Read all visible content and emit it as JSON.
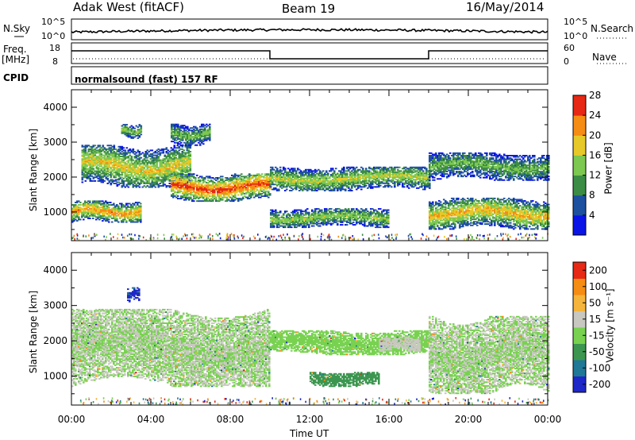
{
  "header": {
    "station": "Adak West (fitACF)",
    "beam": "Beam 19",
    "date": "16/May/2014"
  },
  "top_panels": {
    "nsky_label": "N.Sky",
    "nsky_ticks": [
      "10^5",
      "10^0"
    ],
    "nsearch_label": "N.Search",
    "nsearch_ticks": [
      "10^5",
      "10^0"
    ],
    "freq_label": "Freq.",
    "freq_unit": "[MHz]",
    "freq_ticks": [
      "18",
      "8"
    ],
    "nave_label": "Nave",
    "nave_ticks": [
      "60",
      "0"
    ],
    "cpid_label": "CPID",
    "cpid_text": "normalsound (fast) 157 RF"
  },
  "chart_data": [
    {
      "type": "heatmap",
      "panel": "power",
      "xlabel": "Time UT",
      "ylabel": "Slant Range [km]",
      "x_ticks": [
        "00:00",
        "04:00",
        "08:00",
        "12:00",
        "16:00",
        "20:00",
        "00:00"
      ],
      "x_range_hours": [
        0,
        24
      ],
      "y_range_km": [
        180,
        4500
      ],
      "y_ticks": [
        1000,
        2000,
        3000,
        4000
      ],
      "colorbar_label": "Power [dB]",
      "colorbar_ticks": [
        "4",
        "8",
        "12",
        "16",
        "20",
        "24",
        "28"
      ],
      "colorbar_range": [
        0,
        30
      ],
      "colorbar_colors": [
        "#0a14e6",
        "#1e50a0",
        "#3c8c46",
        "#7cc850",
        "#e6c828",
        "#f58c14",
        "#e62814"
      ],
      "echo_regions": [
        {
          "hours": [
            0.0,
            3.5
          ],
          "range_km": [
            700,
            1300
          ],
          "peak_db": 24
        },
        {
          "hours": [
            0.5,
            6.0
          ],
          "range_km": [
            1700,
            2900
          ],
          "peak_db": 20
        },
        {
          "hours": [
            5.0,
            10.0
          ],
          "range_km": [
            1300,
            2100
          ],
          "peak_db": 28
        },
        {
          "hours": [
            10.0,
            18.0
          ],
          "range_km": [
            1600,
            2300
          ],
          "peak_db": 18
        },
        {
          "hours": [
            10.0,
            16.0
          ],
          "range_km": [
            550,
            1100
          ],
          "peak_db": 16
        },
        {
          "hours": [
            18.0,
            24.0
          ],
          "range_km": [
            500,
            1400
          ],
          "peak_db": 22
        },
        {
          "hours": [
            18.0,
            24.0
          ],
          "range_km": [
            1900,
            2700
          ],
          "peak_db": 14
        },
        {
          "hours": [
            2.5,
            3.5
          ],
          "range_km": [
            3100,
            3500
          ],
          "peak_db": 16
        },
        {
          "hours": [
            5.0,
            7.0
          ],
          "range_km": [
            2900,
            3500
          ],
          "peak_db": 14
        }
      ]
    },
    {
      "type": "heatmap",
      "panel": "velocity",
      "xlabel": "Time UT",
      "ylabel": "Slant Range [km]",
      "x_ticks": [
        "00:00",
        "04:00",
        "08:00",
        "12:00",
        "16:00",
        "20:00",
        "00:00"
      ],
      "x_range_hours": [
        0,
        24
      ],
      "y_range_km": [
        180,
        4500
      ],
      "y_ticks": [
        1000,
        2000,
        3000,
        4000
      ],
      "colorbar_label": "Velocity [m s⁻¹]",
      "colorbar_ticks": [
        "200",
        "100",
        "50",
        "15",
        "-15",
        "-50",
        "-100",
        "-200"
      ],
      "colorbar_range": [
        -250,
        250
      ],
      "colorbar_colors": [
        "#1e28c8",
        "#1e7896",
        "#3c9650",
        "#78d250",
        "#c8c8c0",
        "#f5b43c",
        "#f58c14",
        "#e62814"
      ],
      "echo_regions": [
        {
          "hours": [
            0.0,
            10.0
          ],
          "range_km": [
            700,
            2900
          ],
          "velocity": 0
        },
        {
          "hours": [
            10.0,
            18.0
          ],
          "range_km": [
            1600,
            2300
          ],
          "velocity": -40
        },
        {
          "hours": [
            12.0,
            15.5
          ],
          "range_km": [
            700,
            1100
          ],
          "velocity": -80
        },
        {
          "hours": [
            18.0,
            24.0
          ],
          "range_km": [
            500,
            2700
          ],
          "velocity": 0
        },
        {
          "hours": [
            2.8,
            3.4
          ],
          "range_km": [
            3100,
            3500
          ],
          "velocity": -200
        },
        {
          "hours": [
            15.5,
            17.5
          ],
          "range_km": [
            1700,
            2100
          ],
          "velocity": 40
        }
      ]
    }
  ]
}
